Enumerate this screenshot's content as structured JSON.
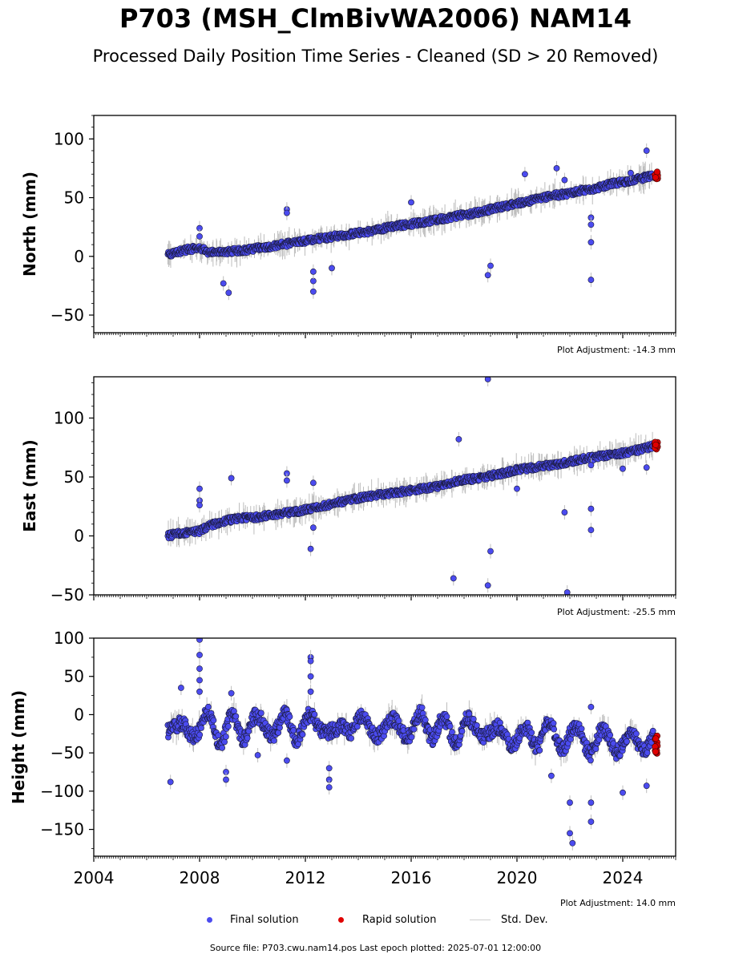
{
  "title": "P703 (MSH_ClmBivWA2006) NAM14",
  "subtitle": "Processed Daily Position Time Series - Cleaned (SD > 20 Removed)",
  "footer": "Source file: P703.cwu.nam14.pos  Last epoch plotted: 2025-07-01 12:00:00",
  "legend": {
    "final": "Final solution",
    "rapid": "Rapid solution",
    "std": "Std. Dev."
  },
  "colors": {
    "final": "#4b4bef",
    "rapid": "#e00000",
    "std": "#bdbdbd",
    "edge": "#1a1a3a"
  },
  "chart_data": [
    {
      "type": "scatter",
      "ylabel": "North (mm)",
      "ylim": [
        -65,
        120
      ],
      "yticks": [
        -50,
        0,
        50,
        100
      ],
      "xlim": [
        2004.0,
        2026.0
      ],
      "adjustment": "Plot Adjustment: -14.3 mm",
      "series": [
        {
          "name": "Final solution",
          "x": [
            2006.8,
            2007.2,
            2007.6,
            2008.0,
            2008.4,
            2009.0,
            2009.6,
            2010.2,
            2010.8,
            2011.4,
            2012.0,
            2012.4,
            2012.8,
            2013.4,
            2014.0,
            2014.6,
            2015.2,
            2015.8,
            2016.4,
            2017.0,
            2017.6,
            2018.2,
            2018.8,
            2019.4,
            2020.0,
            2020.6,
            2021.2,
            2021.8,
            2022.4,
            2023.0,
            2023.6,
            2024.2,
            2024.8,
            2025.2
          ],
          "y": [
            1,
            4,
            6,
            7,
            3,
            4,
            5,
            7,
            9,
            11,
            13,
            15,
            16,
            18,
            20,
            22,
            25,
            27,
            29,
            31,
            34,
            36,
            39,
            42,
            45,
            48,
            51,
            53,
            56,
            58,
            62,
            64,
            67,
            69
          ]
        },
        {
          "name": "Final solution outliers",
          "x": [
            2008.0,
            2008.0,
            2008.9,
            2009.1,
            2011.3,
            2011.3,
            2012.3,
            2012.3,
            2012.3,
            2013.0,
            2016.0,
            2018.9,
            2019.0,
            2020.3,
            2021.5,
            2021.8,
            2022.8,
            2022.8,
            2022.8,
            2022.8,
            2024.3,
            2024.9
          ],
          "y": [
            24,
            17,
            -23,
            -31,
            40,
            37,
            -21,
            -30,
            -13,
            -10,
            46,
            -16,
            -8,
            70,
            75,
            65,
            33,
            27,
            12,
            -20,
            71,
            90
          ]
        }
      ]
    },
    {
      "type": "scatter",
      "ylabel": "East (mm)",
      "ylim": [
        -50,
        135
      ],
      "yticks": [
        -50,
        0,
        50,
        100
      ],
      "xlim": [
        2004.0,
        2026.0
      ],
      "adjustment": "Plot Adjustment: -25.5 mm",
      "series": [
        {
          "name": "Final solution",
          "x": [
            2006.8,
            2007.2,
            2007.6,
            2008.0,
            2008.4,
            2009.0,
            2009.6,
            2010.2,
            2010.8,
            2011.4,
            2012.0,
            2012.4,
            2012.8,
            2013.4,
            2014.0,
            2014.6,
            2015.2,
            2015.8,
            2016.4,
            2017.0,
            2017.6,
            2018.2,
            2018.8,
            2019.4,
            2020.0,
            2020.6,
            2021.2,
            2021.8,
            2022.4,
            2023.0,
            2023.6,
            2024.2,
            2024.8,
            2025.2
          ],
          "y": [
            0,
            2,
            3,
            4,
            9,
            13,
            15,
            16,
            18,
            20,
            22,
            24,
            26,
            29,
            32,
            34,
            36,
            38,
            40,
            42,
            46,
            48,
            50,
            53,
            56,
            58,
            60,
            62,
            65,
            67,
            69,
            71,
            74,
            77
          ]
        },
        {
          "name": "Final solution outliers",
          "x": [
            2008.0,
            2008.0,
            2008.0,
            2009.2,
            2011.3,
            2011.3,
            2012.2,
            2012.3,
            2012.3,
            2017.6,
            2017.8,
            2018.9,
            2018.9,
            2019.0,
            2020.0,
            2021.8,
            2021.9,
            2022.8,
            2022.8,
            2022.8,
            2024.0,
            2024.9
          ],
          "y": [
            40,
            30,
            26,
            49,
            53,
            47,
            -11,
            45,
            7,
            -36,
            82,
            133,
            -42,
            -13,
            40,
            20,
            -48,
            60,
            23,
            5,
            57,
            58
          ]
        }
      ]
    },
    {
      "type": "scatter",
      "ylabel": "Height (mm)",
      "ylim": [
        -185,
        100
      ],
      "yticks": [
        -150,
        -100,
        -50,
        0,
        50,
        100
      ],
      "xlim": [
        2004.0,
        2026.0
      ],
      "xticks": [
        2004,
        2008,
        2012,
        2016,
        2020,
        2024
      ],
      "adjustment": "Plot Adjustment: 14.0 mm",
      "series": [
        {
          "name": "Final solution",
          "x": [
            2006.8,
            2007.2,
            2007.6,
            2008.0,
            2008.4,
            2008.8,
            2009.2,
            2009.6,
            2010.0,
            2010.4,
            2010.8,
            2011.2,
            2011.6,
            2012.0,
            2012.4,
            2012.8,
            2013.2,
            2013.6,
            2014.0,
            2014.4,
            2014.8,
            2015.2,
            2015.6,
            2016.0,
            2016.4,
            2016.8,
            2017.2,
            2017.6,
            2018.0,
            2018.4,
            2018.8,
            2019.2,
            2019.6,
            2020.0,
            2020.4,
            2020.8,
            2021.2,
            2021.6,
            2022.0,
            2022.4,
            2022.8,
            2023.2,
            2023.6,
            2024.0,
            2024.4,
            2024.8,
            2025.2
          ],
          "y": [
            -10,
            -25,
            -15,
            -20,
            -5,
            -30,
            -10,
            -25,
            -5,
            -20,
            -15,
            -10,
            -25,
            -5,
            -20,
            -10,
            -30,
            -15,
            -5,
            -25,
            -15,
            -20,
            -10,
            -25,
            -5,
            -20,
            -15,
            -30,
            -10,
            -25,
            -15,
            -30,
            -20,
            -35,
            -25,
            -30,
            -20,
            -35,
            -25,
            -30,
            -40,
            -30,
            -35,
            -40,
            -30,
            -35,
            -40
          ]
        },
        {
          "name": "Final solution outliers",
          "x": [
            2006.9,
            2007.3,
            2008.0,
            2008.0,
            2008.0,
            2008.0,
            2008.0,
            2009.0,
            2009.0,
            2009.2,
            2010.2,
            2011.3,
            2012.2,
            2012.2,
            2012.2,
            2012.2,
            2012.9,
            2012.9,
            2012.9,
            2021.3,
            2022.0,
            2022.0,
            2022.1,
            2022.8,
            2022.8,
            2022.8,
            2024.0,
            2024.9
          ],
          "y": [
            -88,
            35,
            98,
            78,
            60,
            45,
            30,
            -75,
            -85,
            28,
            -53,
            -60,
            75,
            70,
            50,
            30,
            -70,
            -85,
            -95,
            -80,
            -115,
            -155,
            -168,
            -115,
            -140,
            10,
            -102,
            -93
          ]
        }
      ]
    }
  ]
}
